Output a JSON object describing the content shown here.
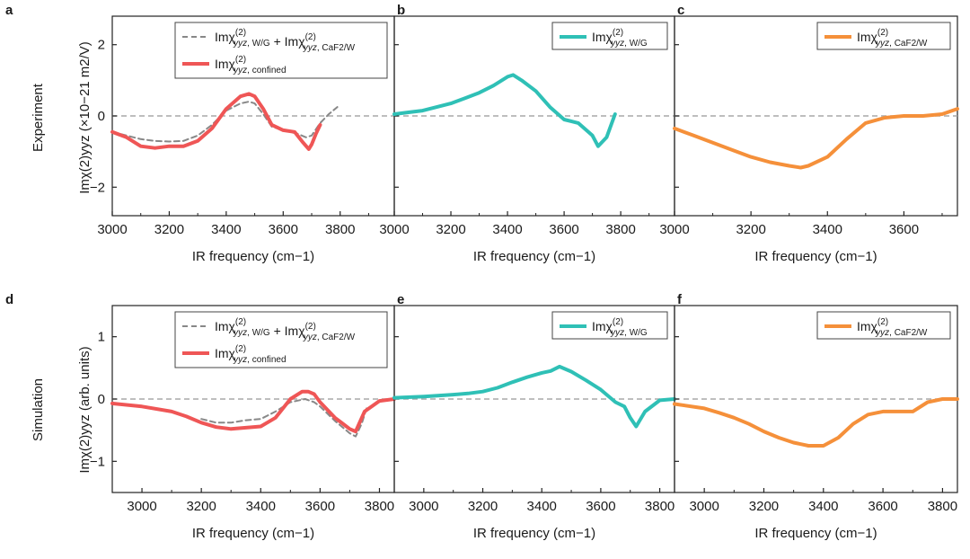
{
  "figure": {
    "row_labels": [
      "Experiment",
      "Simulation"
    ],
    "y_labels": [
      "Imχ(2)yyz (×10−21 m2/V)",
      "Imχ(2)yyz (arb. units)"
    ],
    "x_label": "IR frequency (cm−1)"
  },
  "colors": {
    "red": "#ef5656",
    "teal": "#2fc0b6",
    "orange": "#f5903a",
    "gray": "#888888",
    "zero": "#a8a8a8"
  },
  "chart_data": [
    {
      "panel": "a",
      "type": "line",
      "row": "Experiment",
      "xlabel": "IR frequency (cm−1)",
      "ylabel": "Imχ(2)yyz (×10−21 m2/V)",
      "xlim": [
        3000,
        3990
      ],
      "ylim": [
        -2.8,
        2.8
      ],
      "xticks": [
        3000,
        3200,
        3400,
        3600,
        3800
      ],
      "yticks": [
        -2,
        0,
        2
      ],
      "legend": "top-right",
      "series": [
        {
          "name": "Imχ(2)yyz, W/G + Imχ(2)yyz, CaF2/W",
          "style": "dashed",
          "color": "#888888",
          "x": [
            3000,
            3050,
            3100,
            3150,
            3200,
            3250,
            3300,
            3350,
            3400,
            3450,
            3480,
            3500,
            3530,
            3560,
            3600,
            3650,
            3680,
            3700,
            3730,
            3760,
            3790
          ],
          "y": [
            -0.45,
            -0.55,
            -0.65,
            -0.7,
            -0.72,
            -0.7,
            -0.55,
            -0.25,
            0.15,
            0.35,
            0.4,
            0.35,
            0.05,
            -0.3,
            -0.4,
            -0.5,
            -0.6,
            -0.55,
            -0.2,
            0.05,
            0.25
          ]
        },
        {
          "name": "Imχ(2)yyz, confined",
          "style": "solid",
          "color": "#ef5656",
          "x": [
            3000,
            3050,
            3100,
            3150,
            3200,
            3250,
            3300,
            3350,
            3400,
            3450,
            3480,
            3500,
            3530,
            3560,
            3600,
            3640,
            3670,
            3690,
            3700,
            3715,
            3730
          ],
          "y": [
            -0.45,
            -0.6,
            -0.85,
            -0.9,
            -0.85,
            -0.85,
            -0.7,
            -0.35,
            0.2,
            0.55,
            0.62,
            0.55,
            0.2,
            -0.25,
            -0.4,
            -0.45,
            -0.75,
            -0.93,
            -0.8,
            -0.5,
            -0.25
          ]
        }
      ]
    },
    {
      "panel": "b",
      "type": "line",
      "row": "Experiment",
      "xlabel": "IR frequency (cm−1)",
      "ylabel": "",
      "xlim": [
        3000,
        3990
      ],
      "ylim": [
        -2.8,
        2.8
      ],
      "xticks": [
        3000,
        3200,
        3400,
        3600,
        3800
      ],
      "yticks": [
        -2,
        0,
        2
      ],
      "legend": "top-right",
      "series": [
        {
          "name": "Imχ(2)yyz, W/G",
          "style": "solid",
          "color": "#2fc0b6",
          "x": [
            3000,
            3050,
            3100,
            3150,
            3200,
            3250,
            3300,
            3350,
            3400,
            3420,
            3450,
            3500,
            3550,
            3600,
            3650,
            3700,
            3720,
            3750,
            3780
          ],
          "y": [
            0.05,
            0.1,
            0.15,
            0.25,
            0.35,
            0.5,
            0.65,
            0.85,
            1.1,
            1.15,
            1.0,
            0.7,
            0.25,
            -0.1,
            -0.2,
            -0.55,
            -0.85,
            -0.6,
            0.05
          ]
        }
      ]
    },
    {
      "panel": "c",
      "type": "line",
      "row": "Experiment",
      "xlabel": "IR frequency (cm−1)",
      "ylabel": "",
      "xlim": [
        3000,
        3740
      ],
      "ylim": [
        -2.8,
        2.8
      ],
      "xticks": [
        3000,
        3200,
        3400,
        3600
      ],
      "yticks": [
        -2,
        0,
        2
      ],
      "legend": "top-right",
      "series": [
        {
          "name": "Imχ(2)yyz, CaF2/W",
          "style": "solid",
          "color": "#f5903a",
          "x": [
            3000,
            3050,
            3100,
            3150,
            3200,
            3250,
            3300,
            3330,
            3350,
            3400,
            3450,
            3500,
            3550,
            3600,
            3650,
            3700,
            3740
          ],
          "y": [
            -0.35,
            -0.55,
            -0.75,
            -0.95,
            -1.15,
            -1.3,
            -1.4,
            -1.45,
            -1.4,
            -1.15,
            -0.65,
            -0.2,
            -0.05,
            0.0,
            0.0,
            0.05,
            0.2
          ]
        }
      ]
    },
    {
      "panel": "d",
      "type": "line",
      "row": "Simulation",
      "xlabel": "IR frequency (cm−1)",
      "ylabel": "Imχ(2)yyz (arb. units)",
      "xlim": [
        2900,
        3850
      ],
      "ylim": [
        -1.5,
        1.5
      ],
      "xticks": [
        3000,
        3200,
        3400,
        3600,
        3800
      ],
      "yticks": [
        -1,
        0,
        1
      ],
      "legend": "top-right",
      "series": [
        {
          "name": "Imχ(2)yyz, W/G + Imχ(2)yyz, CaF2/W",
          "style": "dashed",
          "color": "#888888",
          "x": [
            3200,
            3250,
            3300,
            3350,
            3400,
            3450,
            3500,
            3550,
            3580,
            3600,
            3650,
            3700,
            3720,
            3740,
            3760
          ],
          "y": [
            -0.32,
            -0.38,
            -0.38,
            -0.34,
            -0.32,
            -0.2,
            -0.05,
            0.0,
            -0.05,
            -0.12,
            -0.35,
            -0.55,
            -0.6,
            -0.4,
            -0.1
          ]
        },
        {
          "name": "Imχ(2)yyz, confined",
          "style": "solid",
          "color": "#ef5656",
          "x": [
            2900,
            3000,
            3100,
            3150,
            3200,
            3250,
            3300,
            3350,
            3400,
            3450,
            3500,
            3540,
            3560,
            3580,
            3600,
            3650,
            3700,
            3720,
            3750,
            3800,
            3850
          ],
          "y": [
            -0.07,
            -0.12,
            -0.2,
            -0.28,
            -0.38,
            -0.45,
            -0.48,
            -0.46,
            -0.44,
            -0.3,
            0.0,
            0.12,
            0.12,
            0.08,
            -0.05,
            -0.3,
            -0.48,
            -0.52,
            -0.2,
            -0.03,
            0.0
          ]
        }
      ]
    },
    {
      "panel": "e",
      "type": "line",
      "row": "Simulation",
      "xlabel": "IR frequency (cm−1)",
      "ylabel": "",
      "xlim": [
        2900,
        3850
      ],
      "ylim": [
        -1.5,
        1.5
      ],
      "xticks": [
        3000,
        3200,
        3400,
        3600,
        3800
      ],
      "yticks": [
        -1,
        0,
        1
      ],
      "legend": "top-right",
      "series": [
        {
          "name": "Imχ(2)yyz, W/G",
          "style": "solid",
          "color": "#2fc0b6",
          "x": [
            2900,
            3000,
            3100,
            3150,
            3200,
            3250,
            3300,
            3350,
            3400,
            3430,
            3460,
            3500,
            3550,
            3600,
            3650,
            3680,
            3700,
            3720,
            3750,
            3800,
            3850
          ],
          "y": [
            0.02,
            0.04,
            0.07,
            0.09,
            0.12,
            0.18,
            0.27,
            0.35,
            0.42,
            0.45,
            0.52,
            0.44,
            0.3,
            0.15,
            -0.05,
            -0.12,
            -0.3,
            -0.44,
            -0.2,
            -0.02,
            0.0
          ]
        }
      ]
    },
    {
      "panel": "f",
      "type": "line",
      "row": "Simulation",
      "xlabel": "IR frequency (cm−1)",
      "ylabel": "",
      "xlim": [
        2900,
        3850
      ],
      "ylim": [
        -1.5,
        1.5
      ],
      "xticks": [
        3000,
        3200,
        3400,
        3600,
        3800
      ],
      "yticks": [
        -1,
        0,
        1
      ],
      "legend": "top-right",
      "series": [
        {
          "name": "Imχ(2)yyz, CaF2/W",
          "style": "solid",
          "color": "#f5903a",
          "x": [
            2900,
            3000,
            3050,
            3100,
            3150,
            3200,
            3250,
            3300,
            3350,
            3400,
            3450,
            3500,
            3550,
            3600,
            3650,
            3700,
            3750,
            3800,
            3850
          ],
          "y": [
            -0.08,
            -0.15,
            -0.22,
            -0.3,
            -0.4,
            -0.52,
            -0.62,
            -0.7,
            -0.75,
            -0.75,
            -0.62,
            -0.4,
            -0.25,
            -0.2,
            -0.2,
            -0.2,
            -0.05,
            0.0,
            0.0
          ]
        }
      ]
    }
  ]
}
